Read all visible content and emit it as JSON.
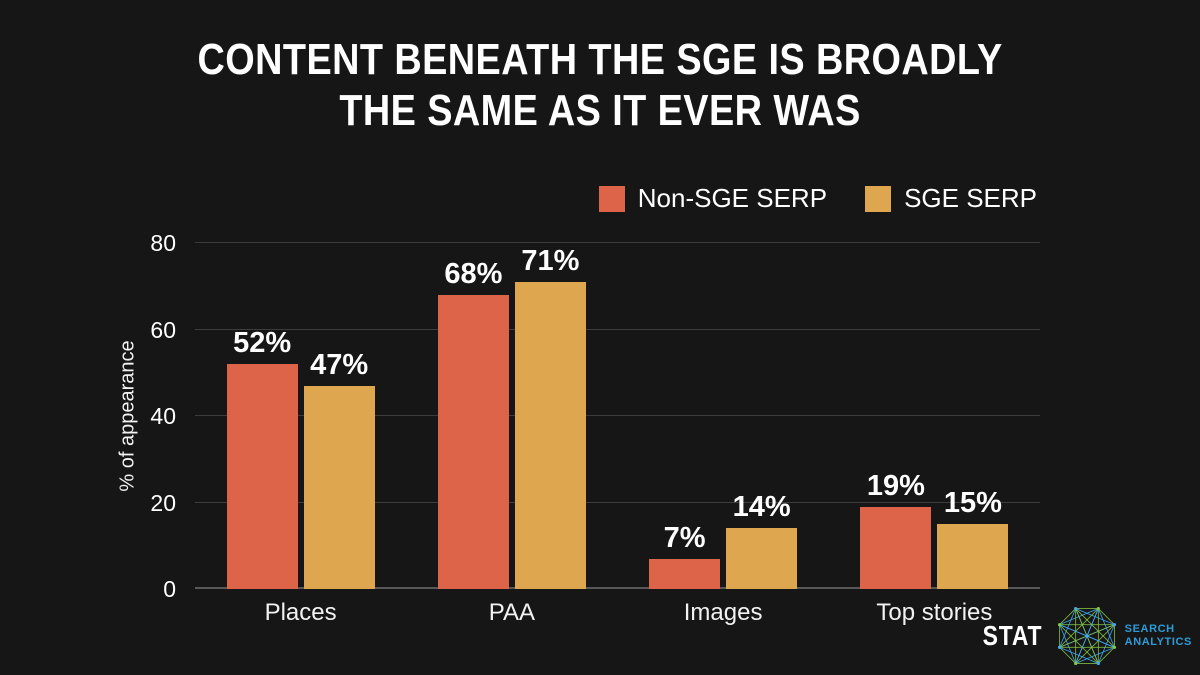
{
  "title": {
    "line1": "CONTENT BENEATH THE SGE IS BROADLY",
    "line2": "THE SAME AS IT EVER WAS"
  },
  "chart_data": {
    "type": "bar",
    "title": "Content beneath the SGE is broadly the same as it ever was",
    "categories": [
      "Places",
      "PAA",
      "Images",
      "Top stories"
    ],
    "series": [
      {
        "name": "Non-SGE SERP",
        "color": "#DD6349",
        "values": [
          52,
          68,
          7,
          19
        ]
      },
      {
        "name": "SGE SERP",
        "color": "#DEA64E",
        "values": [
          47,
          71,
          14,
          15
        ]
      }
    ],
    "value_suffix": "%",
    "xlabel": "",
    "ylabel": "% of appearance",
    "yticks": [
      0,
      20,
      40,
      60,
      80
    ],
    "ylim": [
      0,
      80
    ],
    "grid": true,
    "legend_position": "top-right"
  },
  "legend": {
    "items": [
      {
        "label": "Non-SGE SERP",
        "color": "#DD6349"
      },
      {
        "label": "SGE SERP",
        "color": "#DEA64E"
      }
    ]
  },
  "footer": {
    "brand": "STAT",
    "tagline": [
      "SEARCH",
      "ANALYTICS"
    ]
  },
  "colors": {
    "background": "#161616",
    "text": "#FFFFFF",
    "gridline": "#3C3C3C",
    "axis_line": "#575757",
    "tagline_blue": "#2E9BD6",
    "logo_green": "#86C443",
    "logo_blue": "#3FA9F5"
  }
}
